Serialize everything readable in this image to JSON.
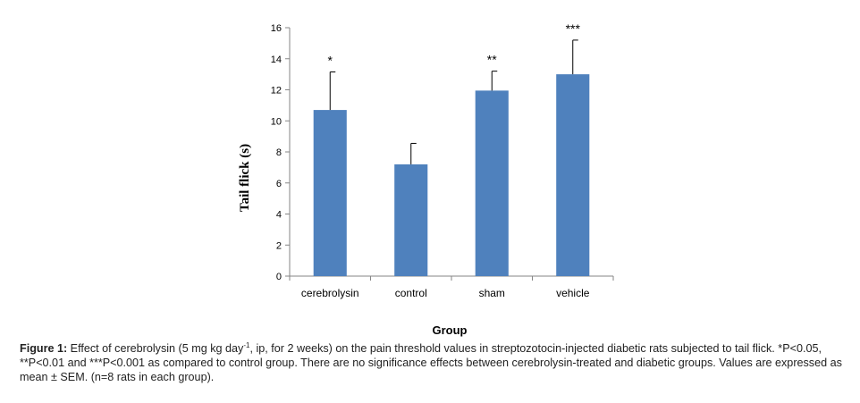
{
  "chart_data": {
    "type": "bar",
    "categories": [
      "cerebrolysin",
      "control",
      "sham",
      "vehicle"
    ],
    "values": [
      10.7,
      7.2,
      11.95,
      13.0
    ],
    "errors": [
      2.45,
      1.35,
      1.25,
      2.2
    ],
    "significance": [
      "*",
      "",
      "**",
      "***"
    ],
    "xlabel": "Group",
    "ylabel": "Tail flick (s)",
    "ylim": [
      0,
      16
    ],
    "yticks": [
      "0",
      "2",
      "4",
      "6",
      "8",
      "10",
      "12",
      "14",
      "16"
    ],
    "grid": false,
    "bar_color": "#4f81bd"
  },
  "caption": {
    "label": "Figure 1:",
    "text_a": " Effect of cerebrolysin (5 mg kg day",
    "sup": "-1",
    "text_b": ", ip, for 2 weeks) on the pain threshold values in streptozotocin-injected diabetic rats subjected to tail flick. *P<0.05, **P<0.01 and ***P<0.001 as compared to control group. There are no significance effects between cerebrolysin-treated and diabetic groups. Values are expressed as mean ± SEM. (n=8 rats in each group)."
  }
}
